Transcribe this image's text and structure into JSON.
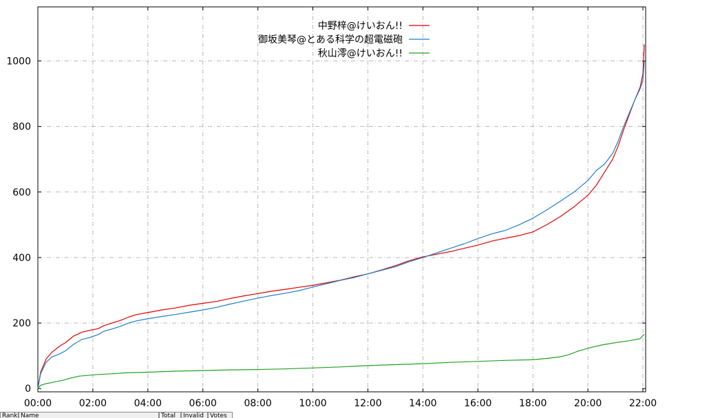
{
  "chart_data": {
    "type": "line",
    "title": "",
    "xlabel": "",
    "ylabel": "",
    "x_ticks": [
      "00:00",
      "02:00",
      "04:00",
      "06:00",
      "08:00",
      "10:00",
      "12:00",
      "14:00",
      "16:00",
      "18:00",
      "20:00",
      "22:00"
    ],
    "y_ticks": [
      0,
      200,
      400,
      600,
      800,
      1000
    ],
    "xlim_hours": [
      0,
      22.1
    ],
    "ylim": [
      -10,
      1165
    ],
    "grid": true,
    "legend_position": "top-center",
    "series": [
      {
        "name": "中野梓@けいおん!!",
        "color": "#e00000",
        "x_hours": [
          0,
          0.1,
          0.3,
          0.5,
          0.8,
          1.0,
          1.3,
          1.6,
          1.9,
          2.2,
          2.4,
          2.7,
          3.0,
          3.3,
          3.6,
          4.0,
          4.5,
          5.0,
          5.5,
          6.0,
          6.5,
          7.0,
          7.5,
          8.0,
          8.5,
          9.0,
          9.5,
          10.0,
          10.5,
          11.0,
          11.5,
          12.0,
          12.5,
          13.0,
          13.5,
          14.0,
          14.5,
          15.0,
          15.5,
          16.0,
          16.5,
          17.0,
          17.5,
          18.0,
          18.5,
          19.0,
          19.5,
          20.0,
          20.3,
          20.6,
          20.9,
          21.1,
          21.3,
          21.5,
          21.7,
          21.9,
          22.0,
          22.05
        ],
        "values": [
          0,
          50,
          90,
          110,
          130,
          140,
          160,
          172,
          178,
          183,
          192,
          200,
          208,
          218,
          226,
          232,
          240,
          246,
          254,
          260,
          266,
          275,
          283,
          290,
          297,
          303,
          309,
          315,
          323,
          331,
          341,
          350,
          362,
          375,
          390,
          402,
          410,
          418,
          428,
          438,
          450,
          459,
          467,
          478,
          500,
          525,
          555,
          590,
          620,
          660,
          700,
          740,
          790,
          835,
          880,
          920,
          960,
          1050
        ]
      },
      {
        "name": "御坂美琴@とある科学の超電磁砲",
        "color": "#1e7fc8",
        "x_hours": [
          0,
          0.1,
          0.3,
          0.5,
          0.8,
          1.0,
          1.3,
          1.6,
          1.9,
          2.2,
          2.4,
          2.7,
          3.0,
          3.3,
          3.6,
          4.0,
          4.5,
          5.0,
          5.5,
          6.0,
          6.5,
          7.0,
          7.5,
          8.0,
          8.5,
          9.0,
          9.5,
          10.0,
          10.5,
          11.0,
          11.5,
          12.0,
          12.5,
          13.0,
          13.5,
          14.0,
          14.5,
          15.0,
          15.5,
          16.0,
          16.5,
          17.0,
          17.5,
          18.0,
          18.5,
          19.0,
          19.5,
          20.0,
          20.3,
          20.6,
          20.9,
          21.1,
          21.3,
          21.5,
          21.7,
          21.9,
          22.0,
          22.05
        ],
        "values": [
          0,
          45,
          80,
          96,
          106,
          115,
          135,
          150,
          156,
          165,
          175,
          182,
          190,
          200,
          207,
          213,
          220,
          226,
          233,
          240,
          248,
          258,
          267,
          276,
          284,
          291,
          299,
          310,
          320,
          330,
          339,
          350,
          361,
          372,
          387,
          400,
          414,
          428,
          442,
          458,
          472,
          483,
          500,
          520,
          545,
          572,
          600,
          635,
          665,
          685,
          718,
          755,
          800,
          840,
          880,
          915,
          940,
          1000
        ]
      },
      {
        "name": "秋山澪@けいおん!!",
        "color": "#22a022",
        "x_hours": [
          0,
          0.1,
          0.3,
          0.6,
          0.9,
          1.2,
          1.5,
          1.8,
          2.2,
          2.7,
          3.2,
          4.0,
          5.0,
          6.0,
          7.0,
          8.0,
          9.0,
          10.0,
          11.0,
          12.0,
          13.0,
          14.0,
          15.0,
          16.0,
          17.0,
          18.0,
          18.5,
          19.0,
          19.3,
          19.6,
          20.0,
          20.5,
          21.0,
          21.5,
          21.9,
          22.05
        ],
        "values": [
          0,
          10,
          15,
          20,
          25,
          32,
          38,
          40,
          43,
          45,
          48,
          50,
          53,
          55,
          57,
          58,
          60,
          63,
          66,
          70,
          73,
          76,
          80,
          83,
          86,
          88,
          92,
          97,
          103,
          113,
          123,
          133,
          140,
          146,
          152,
          166
        ]
      }
    ]
  },
  "table_header": {
    "columns": [
      "Rank",
      "Name",
      "Total",
      "Invalid",
      "Votes"
    ]
  }
}
